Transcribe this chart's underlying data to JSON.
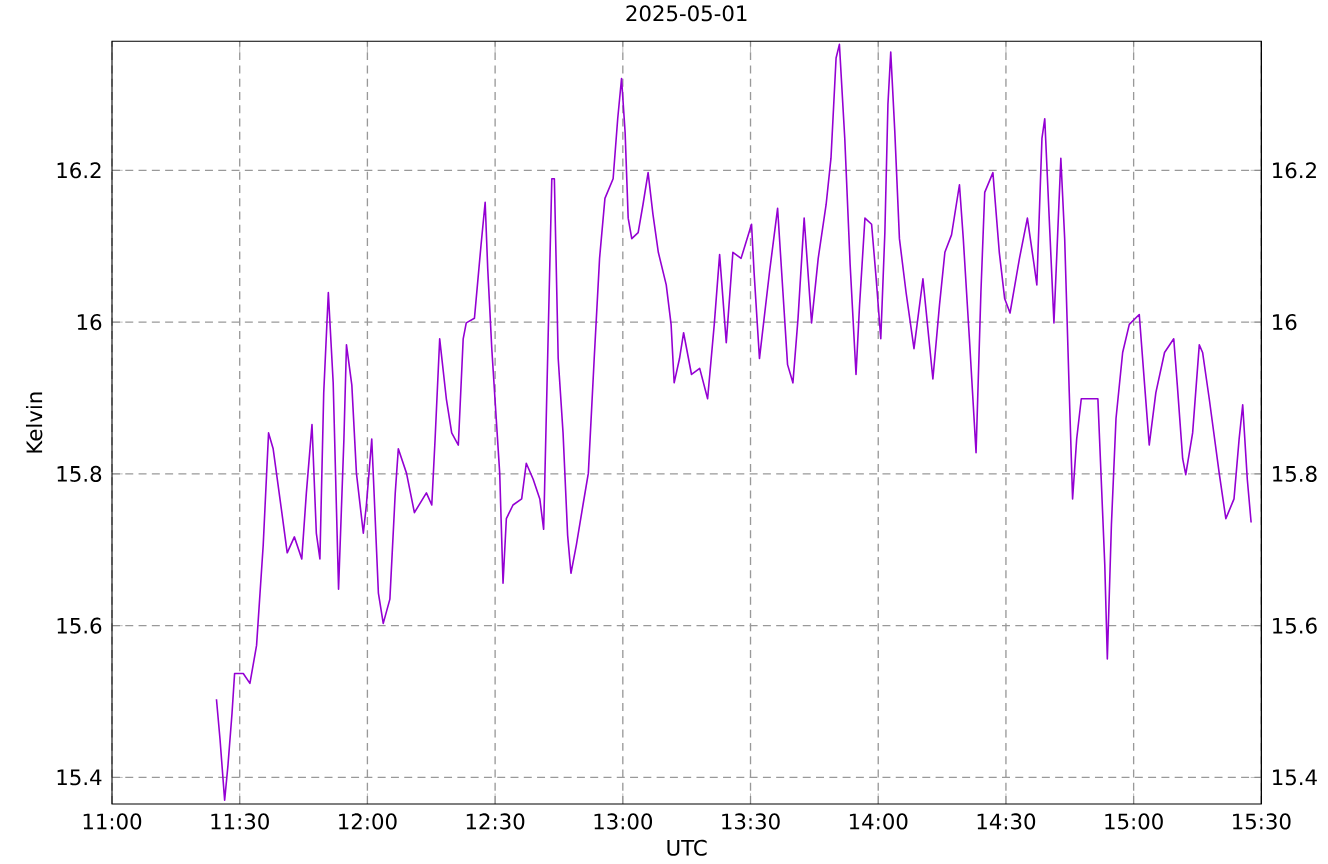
{
  "chart_data": {
    "type": "line",
    "title": "2025-05-01",
    "xlabel": "UTC",
    "ylabel": "Kelvin",
    "x": [
      11.409,
      11.423,
      11.441,
      11.454,
      11.47,
      11.48,
      11.514,
      11.54,
      11.566,
      11.592,
      11.613,
      11.631,
      11.665,
      11.686,
      11.714,
      11.743,
      11.761,
      11.783,
      11.8,
      11.814,
      11.829,
      11.847,
      11.866,
      11.887,
      11.908,
      11.918,
      11.939,
      11.957,
      11.984,
      11.996,
      12.017,
      12.043,
      12.062,
      12.088,
      12.109,
      12.121,
      12.153,
      12.184,
      12.231,
      12.252,
      12.265,
      12.283,
      12.309,
      12.33,
      12.356,
      12.375,
      12.387,
      12.419,
      12.445,
      12.461,
      12.471,
      12.487,
      12.518,
      12.531,
      12.544,
      12.57,
      12.604,
      12.622,
      12.649,
      12.675,
      12.69,
      12.706,
      12.722,
      12.732,
      12.747,
      12.766,
      12.784,
      12.797,
      12.818,
      12.844,
      12.865,
      12.888,
      12.909,
      12.93,
      12.962,
      12.98,
      12.995,
      13.009,
      13.021,
      13.035,
      13.06,
      13.079,
      13.099,
      13.118,
      13.139,
      13.17,
      13.189,
      13.201,
      13.222,
      13.238,
      13.269,
      13.301,
      13.332,
      13.358,
      13.379,
      13.405,
      13.431,
      13.463,
      13.504,
      13.514,
      13.535,
      13.574,
      13.606,
      13.627,
      13.645,
      13.666,
      13.686,
      13.71,
      13.739,
      13.765,
      13.796,
      13.815,
      13.835,
      13.848,
      13.869,
      13.89,
      13.913,
      13.927,
      13.948,
      13.974,
      13.992,
      14.01,
      14.026,
      14.038,
      14.049,
      14.065,
      14.083,
      14.109,
      14.14,
      14.175,
      14.214,
      14.24,
      14.261,
      14.287,
      14.318,
      14.333,
      14.357,
      14.383,
      14.402,
      14.417,
      14.449,
      14.474,
      14.495,
      14.516,
      14.553,
      14.584,
      14.61,
      14.621,
      14.641,
      14.652,
      14.672,
      14.688,
      14.715,
      14.73,
      14.748,
      14.761,
      14.777,
      14.795,
      14.86,
      14.887,
      14.897,
      14.913,
      14.931,
      14.957,
      14.983,
      15.022,
      15.043,
      15.061,
      15.087,
      15.121,
      15.157,
      15.171,
      15.192,
      15.204,
      15.231,
      15.257,
      15.27,
      15.296,
      15.335,
      15.361,
      15.393,
      15.413,
      15.427,
      15.445,
      15.46
    ],
    "values": [
      15.503,
      15.45,
      15.37,
      15.416,
      15.485,
      15.537,
      15.537,
      15.524,
      15.574,
      15.706,
      15.854,
      15.833,
      15.749,
      15.696,
      15.717,
      15.688,
      15.775,
      15.865,
      15.722,
      15.688,
      15.907,
      16.039,
      15.92,
      15.648,
      15.846,
      15.97,
      15.917,
      15.801,
      15.722,
      15.759,
      15.846,
      15.643,
      15.603,
      15.635,
      15.775,
      15.833,
      15.801,
      15.749,
      15.775,
      15.759,
      15.846,
      15.978,
      15.899,
      15.854,
      15.838,
      15.978,
      15.999,
      16.005,
      16.102,
      16.158,
      16.071,
      15.965,
      15.801,
      15.656,
      15.741,
      15.759,
      15.767,
      15.814,
      15.793,
      15.767,
      15.727,
      15.957,
      16.189,
      16.189,
      15.952,
      15.854,
      15.719,
      15.669,
      15.706,
      15.759,
      15.801,
      15.952,
      16.084,
      16.163,
      16.189,
      16.268,
      16.321,
      16.25,
      16.137,
      16.11,
      16.118,
      16.155,
      16.197,
      16.142,
      16.092,
      16.049,
      15.997,
      15.92,
      15.952,
      15.986,
      15.931,
      15.939,
      15.899,
      15.997,
      16.089,
      15.973,
      16.092,
      16.084,
      16.129,
      16.065,
      15.952,
      16.065,
      16.15,
      16.039,
      15.944,
      15.92,
      16.005,
      16.137,
      15.999,
      16.084,
      16.155,
      16.216,
      16.348,
      16.366,
      16.242,
      16.076,
      15.931,
      16.023,
      16.137,
      16.129,
      16.057,
      15.978,
      16.118,
      16.287,
      16.356,
      16.25,
      16.11,
      16.039,
      15.965,
      16.057,
      15.925,
      16.023,
      16.092,
      16.115,
      16.181,
      16.11,
      15.978,
      15.828,
      16.039,
      16.171,
      16.197,
      16.092,
      16.031,
      16.012,
      16.084,
      16.137,
      16.076,
      16.049,
      16.242,
      16.268,
      16.118,
      15.999,
      16.216,
      16.11,
      15.907,
      15.767,
      15.846,
      15.899,
      15.899,
      15.68,
      15.556,
      15.733,
      15.873,
      15.96,
      15.997,
      16.01,
      15.917,
      15.838,
      15.907,
      15.96,
      15.978,
      15.917,
      15.82,
      15.799,
      15.854,
      15.97,
      15.96,
      15.899,
      15.801,
      15.741,
      15.767,
      15.846,
      15.891,
      15.793,
      15.736
    ],
    "color": "#9400d3",
    "xlim": [
      11,
      15.5
    ],
    "xticks": [
      {
        "value": 11,
        "label": "11:00"
      },
      {
        "value": 11.5,
        "label": "11:30"
      },
      {
        "value": 12,
        "label": "12:00"
      },
      {
        "value": 12.5,
        "label": "12:30"
      },
      {
        "value": 13,
        "label": "13:00"
      },
      {
        "value": 13.5,
        "label": "13:30"
      },
      {
        "value": 14,
        "label": "14:00"
      },
      {
        "value": 14.5,
        "label": "14:30"
      },
      {
        "value": 15,
        "label": "15:00"
      },
      {
        "value": 15.5,
        "label": "15:30"
      }
    ],
    "ylim": [
      15.365,
      16.37
    ],
    "yticks": [
      15.4,
      15.6,
      15.8,
      16,
      16.2
    ],
    "y2lim": [
      15.365,
      16.37
    ],
    "y2ticks": [
      15.4,
      15.6,
      15.8,
      16,
      16.2
    ],
    "grid": true
  }
}
